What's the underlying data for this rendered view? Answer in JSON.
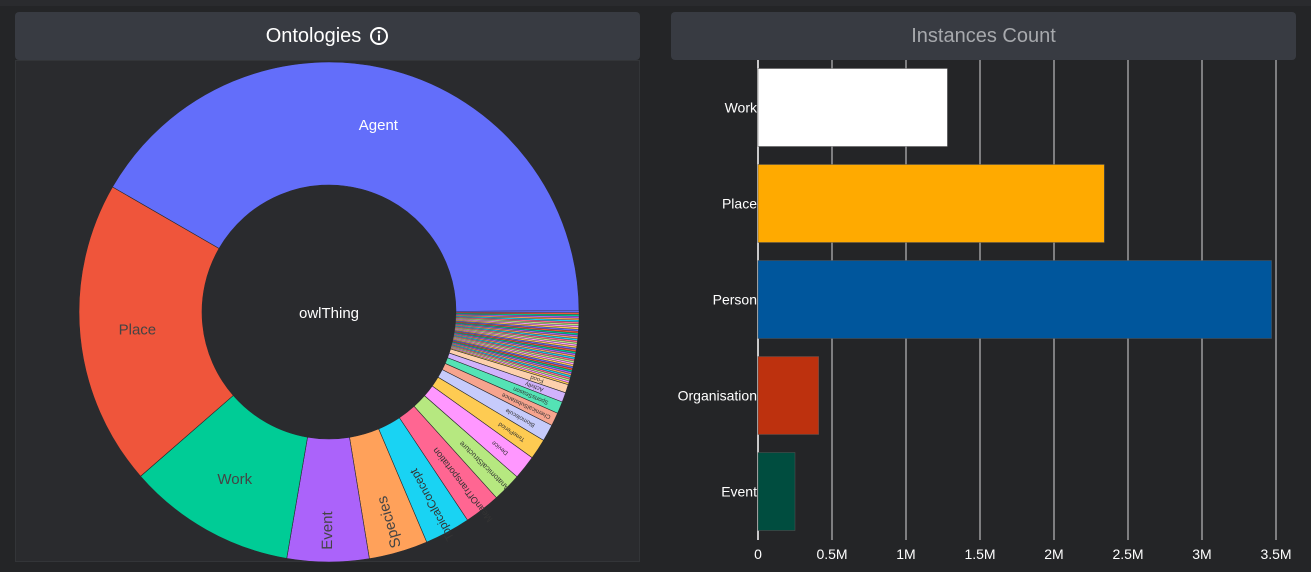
{
  "ontologies": {
    "title": "Ontologies",
    "center_label": "owlThing",
    "segments": [
      {
        "label": "Agent",
        "value": 0.33,
        "color": "#636efa",
        "text_color": "#ffffff"
      },
      {
        "label": "Work",
        "value": 0.14,
        "color": "#00cc96",
        "text_color": "#444444"
      },
      {
        "label": "Event",
        "value": 0.068,
        "color": "#ab63fa",
        "text_color": "#444444"
      },
      {
        "label": "Species",
        "value": 0.049,
        "color": "#ffa15a",
        "text_color": "#444444"
      },
      {
        "label": "TopicalConcept",
        "value": 0.038,
        "color": "#19d3f3",
        "text_color": "#333333"
      },
      {
        "label": "MeanOfTransportation",
        "value": 0.03,
        "color": "#ff6692",
        "text_color": "#333333"
      },
      {
        "label": "AnatomicalStructure",
        "value": 0.024,
        "color": "#b6e880",
        "text_color": "#333333"
      },
      {
        "label": "Device",
        "value": 0.02,
        "color": "#ff97ff",
        "text_color": "#333333"
      },
      {
        "label": "TimePeriod",
        "value": 0.017,
        "color": "#fecb52",
        "text_color": "#333333"
      },
      {
        "label": "Biomolecule",
        "value": 0.014,
        "color": "#c6cbfb",
        "text_color": "#333333"
      },
      {
        "label": "ChemicalSubstance",
        "value": 0.011,
        "color": "#f6a48e",
        "text_color": "#333333"
      },
      {
        "label": "SportsSeason",
        "value": 0.01,
        "color": "#54e3b5",
        "text_color": "#333333"
      },
      {
        "label": "Activity",
        "value": 0.008,
        "color": "#d1b2fc",
        "text_color": "#333333"
      },
      {
        "label": "Food",
        "value": 0.007,
        "color": "#fdd0ac",
        "text_color": "#333333"
      },
      {
        "label": "Place",
        "value": 0.254,
        "color": "#ef553b",
        "text_color": "#444444"
      }
    ],
    "other_segments": {
      "count": 40,
      "value": 0.05,
      "colors": [
        "#636efa",
        "#ef553b",
        "#00cc96",
        "#ab63fa",
        "#ffa15a",
        "#19d3f3",
        "#ff6692",
        "#b6e880",
        "#ff97ff",
        "#fecb52"
      ]
    }
  },
  "instances": {
    "title": "Instances Count",
    "chart_data": {
      "type": "bar",
      "orientation": "horizontal",
      "categories": [
        "Work",
        "Place",
        "Person",
        "Organisation",
        "Event"
      ],
      "values": [
        1280000,
        2340000,
        3470000,
        410000,
        250000
      ],
      "colors": [
        "#ffffff",
        "#ffaa00",
        "#00569c",
        "#bd310e",
        "#004d3f"
      ],
      "xticks": [
        0,
        500000,
        1000000,
        1500000,
        2000000,
        2500000,
        3000000,
        3500000
      ],
      "xtick_labels": [
        "0",
        "0.5M",
        "1M",
        "1.5M",
        "2M",
        "2.5M",
        "3M",
        "3.5M"
      ],
      "xlim": [
        0,
        3500000
      ],
      "grid": true
    }
  }
}
